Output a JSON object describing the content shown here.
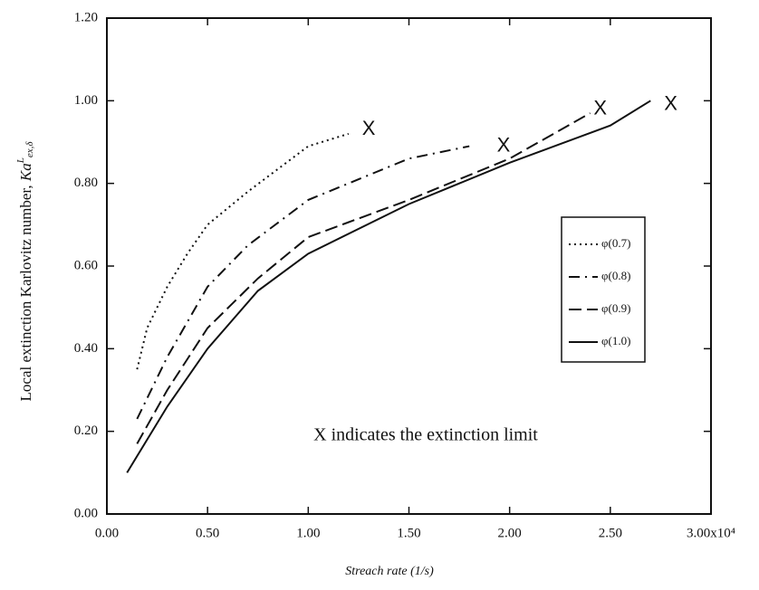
{
  "chart_data": {
    "type": "line",
    "x_label": "Streach rate (1/s)",
    "y_label": "Local extinction Karlovitz number,",
    "y_label_symbol": "Ka",
    "y_label_sup": "L",
    "y_label_sub": "ex,δ",
    "annotation": "X indicates the extinction limit",
    "xlim": [
      0,
      3
    ],
    "ylim": [
      0,
      1.2
    ],
    "xticks": [
      {
        "value": 0,
        "label": "0.00"
      },
      {
        "value": 0.5,
        "label": "0.50"
      },
      {
        "value": 1,
        "label": "1.00"
      },
      {
        "value": 1.5,
        "label": "1.50"
      },
      {
        "value": 2,
        "label": "2.00"
      },
      {
        "value": 2.5,
        "label": "2.50"
      },
      {
        "value": 3,
        "label": "3.00x10⁴"
      }
    ],
    "yticks": [
      {
        "value": 0,
        "label": "0.00"
      },
      {
        "value": 0.2,
        "label": "0.20"
      },
      {
        "value": 0.4,
        "label": "0.40"
      },
      {
        "value": 0.6,
        "label": "0.60"
      },
      {
        "value": 0.8,
        "label": "0.80"
      },
      {
        "value": 1,
        "label": "1.00"
      },
      {
        "value": 1.2,
        "label": "1.20"
      }
    ],
    "legend": "right",
    "series": [
      {
        "name": "φ(0.7)",
        "color": "#111111",
        "dash": "2,4",
        "x": [
          0.15,
          0.2,
          0.3,
          0.4,
          0.5,
          0.7,
          1.0,
          1.2
        ],
        "values": [
          0.35,
          0.45,
          0.55,
          0.63,
          0.7,
          0.78,
          0.89,
          0.92
        ]
      },
      {
        "name": "φ(0.8)",
        "color": "#111111",
        "dash": "12,6,2,6",
        "x": [
          0.15,
          0.3,
          0.5,
          0.7,
          1.0,
          1.5,
          1.8
        ],
        "values": [
          0.23,
          0.38,
          0.55,
          0.65,
          0.76,
          0.86,
          0.89
        ]
      },
      {
        "name": "φ(0.9)",
        "color": "#111111",
        "dash": "14,6",
        "x": [
          0.15,
          0.3,
          0.5,
          0.75,
          1.0,
          1.5,
          2.0,
          2.4
        ],
        "values": [
          0.17,
          0.3,
          0.45,
          0.57,
          0.67,
          0.76,
          0.86,
          0.97
        ]
      },
      {
        "name": "φ(1.0)",
        "color": "#111111",
        "dash": "none",
        "x": [
          0.1,
          0.3,
          0.5,
          0.75,
          1.0,
          1.5,
          2.0,
          2.5,
          2.7
        ],
        "values": [
          0.1,
          0.26,
          0.4,
          0.54,
          0.63,
          0.75,
          0.85,
          0.94,
          1.0
        ]
      }
    ],
    "markers": [
      {
        "label": "X",
        "x": 1.3,
        "y": 0.93
      },
      {
        "label": "X",
        "x": 1.97,
        "y": 0.89
      },
      {
        "label": "X",
        "x": 2.45,
        "y": 0.98
      },
      {
        "label": "X",
        "x": 2.8,
        "y": 0.99
      }
    ]
  }
}
